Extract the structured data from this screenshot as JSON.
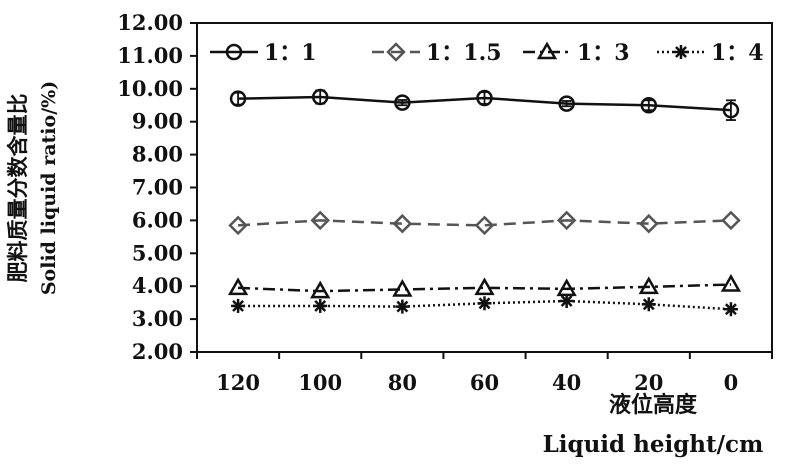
{
  "chart_data": {
    "type": "line",
    "x": [
      120,
      100,
      80,
      60,
      40,
      20,
      0
    ],
    "x_tick_labels": [
      "120",
      "100",
      "80",
      "60",
      "40",
      "20",
      "0"
    ],
    "ylim": [
      2.0,
      12.0
    ],
    "y_tick_labels": [
      "2.00",
      "3.00",
      "4.00",
      "5.00",
      "6.00",
      "7.00",
      "8.00",
      "9.00",
      "10.00",
      "11.00",
      "12.00"
    ],
    "xlabel_cn": "液位高度",
    "xlabel_en": "Liquid height/cm",
    "ylabel_cn": "肥料质量分数含量比",
    "ylabel_en": "Solid liquid ratio/%)",
    "grid": false,
    "legend_position": "top",
    "series": [
      {
        "name": "1：1",
        "values": [
          9.7,
          9.75,
          9.58,
          9.72,
          9.55,
          9.5,
          9.35
        ],
        "errors": [
          0.18,
          0.2,
          0.08,
          0.18,
          0.08,
          0.15,
          0.3
        ],
        "color": "#111111",
        "dash": "",
        "marker": "circle"
      },
      {
        "name": "1：1.5",
        "values": [
          5.85,
          6.0,
          5.9,
          5.85,
          6.0,
          5.9,
          6.0
        ],
        "errors": [
          0,
          0,
          0,
          0,
          0,
          0,
          0
        ],
        "color": "#555555",
        "dash": "12 7",
        "marker": "diamond"
      },
      {
        "name": "1：3",
        "values": [
          3.95,
          3.85,
          3.9,
          3.95,
          3.92,
          3.98,
          4.05
        ],
        "errors": [
          0,
          0,
          0,
          0,
          0,
          0,
          0
        ],
        "color": "#111111",
        "dash": "12 5 3 5",
        "marker": "triangle"
      },
      {
        "name": "1：4",
        "values": [
          3.4,
          3.4,
          3.38,
          3.48,
          3.55,
          3.45,
          3.3
        ],
        "errors": [
          0,
          0,
          0,
          0,
          0,
          0,
          0
        ],
        "color": "#111111",
        "dash": "2 3",
        "marker": "asterisk"
      }
    ]
  }
}
